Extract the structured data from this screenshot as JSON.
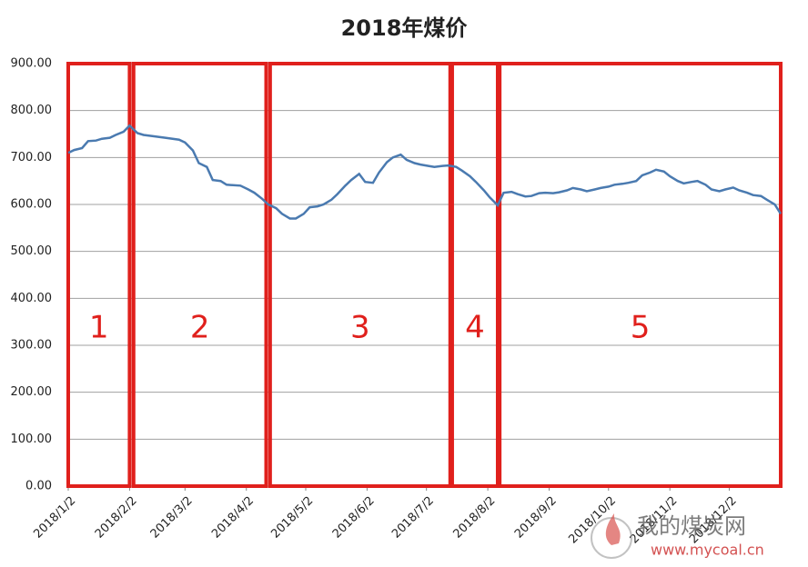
{
  "chart_data": {
    "type": "line",
    "title": "2018年煤价",
    "x": [
      "2018/1/2",
      "2018/1/5",
      "2018/1/9",
      "2018/1/12",
      "2018/1/16",
      "2018/1/19",
      "2018/1/23",
      "2018/1/26",
      "2018/1/30",
      "2018/2/2",
      "2018/2/6",
      "2018/2/9",
      "2018/2/13",
      "2018/2/20",
      "2018/2/27",
      "2018/3/2",
      "2018/3/6",
      "2018/3/9",
      "2018/3/13",
      "2018/3/16",
      "2018/3/20",
      "2018/3/23",
      "2018/3/30",
      "2018/4/3",
      "2018/4/6",
      "2018/4/10",
      "2018/4/13",
      "2018/4/17",
      "2018/4/20",
      "2018/4/24",
      "2018/4/27",
      "2018/5/1",
      "2018/5/4",
      "2018/5/8",
      "2018/5/11",
      "2018/5/15",
      "2018/5/18",
      "2018/5/22",
      "2018/5/25",
      "2018/5/29",
      "2018/6/1",
      "2018/6/5",
      "2018/6/8",
      "2018/6/12",
      "2018/6/15",
      "2018/6/19",
      "2018/6/22",
      "2018/6/26",
      "2018/6/29",
      "2018/7/3",
      "2018/7/6",
      "2018/7/10",
      "2018/7/13",
      "2018/7/17",
      "2018/7/20",
      "2018/7/24",
      "2018/7/27",
      "2018/7/31",
      "2018/8/3",
      "2018/8/7",
      "2018/8/10",
      "2018/8/14",
      "2018/8/17",
      "2018/8/21",
      "2018/8/24",
      "2018/8/28",
      "2018/8/31",
      "2018/9/4",
      "2018/9/7",
      "2018/9/11",
      "2018/9/14",
      "2018/9/18",
      "2018/9/21",
      "2018/9/25",
      "2018/9/28",
      "2018/10/2",
      "2018/10/5",
      "2018/10/9",
      "2018/10/12",
      "2018/10/16",
      "2018/10/19",
      "2018/10/23",
      "2018/10/26",
      "2018/10/30",
      "2018/11/2",
      "2018/11/6",
      "2018/11/9",
      "2018/11/13",
      "2018/11/16",
      "2018/11/20",
      "2018/11/23",
      "2018/11/27",
      "2018/11/30",
      "2018/12/4",
      "2018/12/7",
      "2018/12/11",
      "2018/12/14",
      "2018/12/18",
      "2018/12/21",
      "2018/12/25",
      "2018/12/28"
    ],
    "series": [
      {
        "color": "#4a7ab0",
        "values": [
          710,
          716,
          720,
          735,
          736,
          740,
          742,
          748,
          755,
          768,
          752,
          748,
          746,
          742,
          738,
          732,
          715,
          688,
          680,
          652,
          650,
          642,
          640,
          632,
          625,
          612,
          600,
          592,
          580,
          570,
          570,
          580,
          594,
          596,
          600,
          610,
          622,
          640,
          652,
          665,
          648,
          646,
          668,
          690,
          700,
          706,
          695,
          688,
          685,
          682,
          680,
          682,
          683,
          680,
          672,
          660,
          648,
          630,
          615,
          598,
          625,
          627,
          622,
          617,
          618,
          624,
          625,
          624,
          626,
          630,
          635,
          632,
          628,
          632,
          635,
          638,
          642,
          644,
          646,
          650,
          662,
          668,
          674,
          670,
          660,
          650,
          645,
          648,
          650,
          642,
          632,
          628,
          632,
          636,
          630,
          625,
          620,
          618,
          610,
          600,
          580
        ]
      }
    ],
    "xlim": [
      "2018/1/2",
      "2018/12/28"
    ],
    "xticks": [
      "2018/1/2",
      "2018/2/2",
      "2018/3/2",
      "2018/4/2",
      "2018/5/2",
      "2018/6/2",
      "2018/7/2",
      "2018/8/2",
      "2018/9/2",
      "2018/10/2",
      "2018/11/2",
      "2018/12/2"
    ],
    "ylim": [
      0,
      900
    ],
    "yticks": [
      {
        "value": 0,
        "label": "0.00"
      },
      {
        "value": 100,
        "label": "100.00"
      },
      {
        "value": 200,
        "label": "200.00"
      },
      {
        "value": 300,
        "label": "300.00"
      },
      {
        "value": 400,
        "label": "400.00"
      },
      {
        "value": 500,
        "label": "500.00"
      },
      {
        "value": 600,
        "label": "600.00"
      },
      {
        "value": 700,
        "label": "700.00"
      },
      {
        "value": 800,
        "label": "800.00"
      },
      {
        "value": 900,
        "label": "900.00"
      }
    ],
    "grid": true,
    "periods": [
      {
        "label": "1",
        "start": "2018/1/2",
        "end": "2018/2/2"
      },
      {
        "label": "2",
        "start": "2018/2/4",
        "end": "2018/4/12"
      },
      {
        "label": "3",
        "start": "2018/4/14",
        "end": "2018/7/14"
      },
      {
        "label": "4",
        "start": "2018/7/15",
        "end": "2018/8/7"
      },
      {
        "label": "5",
        "start": "2018/8/8",
        "end": "2018/12/28"
      }
    ],
    "period_color": "#e0201c",
    "watermark": {
      "name": "我的煤炭网",
      "url": "www.mycoal.cn"
    }
  }
}
